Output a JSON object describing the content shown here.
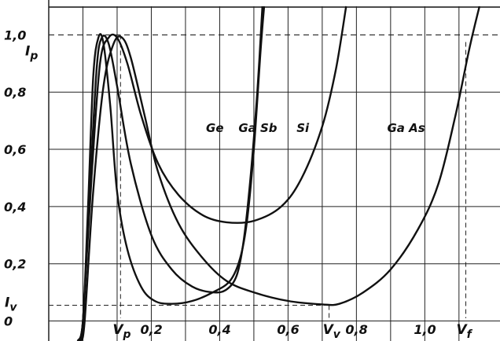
{
  "chart_data": {
    "type": "line",
    "title": "",
    "xlabel": "",
    "ylabel": "",
    "xlim": [
      -0.1,
      1.22
    ],
    "ylim": [
      -0.07,
      1.1
    ],
    "grid": true,
    "x_tick_labels": [
      {
        "value": 0.2,
        "text": "0,2"
      },
      {
        "value": 0.4,
        "text": "0,4"
      },
      {
        "value": 0.6,
        "text": "0,6"
      },
      {
        "value": 0.8,
        "text": "0,8"
      },
      {
        "value": 1.0,
        "text": "1,0"
      }
    ],
    "y_tick_labels": [
      {
        "value": 0,
        "text": "0"
      },
      {
        "value": 0.2,
        "text": "0,2"
      },
      {
        "value": 0.4,
        "text": "0,4"
      },
      {
        "value": 0.6,
        "text": "0,6"
      },
      {
        "value": 0.8,
        "text": "0,8"
      },
      {
        "value": 1.0,
        "text": "1,0"
      }
    ],
    "annotations": {
      "ip": {
        "text": "I",
        "sub": "p",
        "y": 1.0
      },
      "iv": {
        "text": "I",
        "sub": "v",
        "y": 0.055
      },
      "vp": {
        "text": "V",
        "sub": "p",
        "x": 0.11
      },
      "vv": {
        "text": "V",
        "sub": "v",
        "x": 0.72
      },
      "vf": {
        "text": "V",
        "sub": "f",
        "x": 1.12
      }
    },
    "series": [
      {
        "name": "Ge",
        "label_pos": [
          0.36,
          0.66
        ],
        "points": [
          [
            -0.015,
            -0.07
          ],
          [
            0.0,
            0.0
          ],
          [
            0.02,
            0.45
          ],
          [
            0.04,
            0.88
          ],
          [
            0.055,
            0.99
          ],
          [
            0.075,
            0.97
          ],
          [
            0.1,
            0.82
          ],
          [
            0.14,
            0.55
          ],
          [
            0.2,
            0.3
          ],
          [
            0.26,
            0.18
          ],
          [
            0.32,
            0.12
          ],
          [
            0.38,
            0.1
          ],
          [
            0.42,
            0.11
          ],
          [
            0.45,
            0.16
          ],
          [
            0.47,
            0.28
          ],
          [
            0.49,
            0.5
          ],
          [
            0.51,
            0.8
          ],
          [
            0.525,
            1.1
          ]
        ]
      },
      {
        "name": "Ga Sb",
        "label_pos": [
          0.455,
          0.66
        ],
        "points": [
          [
            -0.015,
            -0.07
          ],
          [
            0.0,
            0.0
          ],
          [
            0.015,
            0.4
          ],
          [
            0.03,
            0.85
          ],
          [
            0.045,
            0.99
          ],
          [
            0.06,
            0.97
          ],
          [
            0.08,
            0.75
          ],
          [
            0.1,
            0.45
          ],
          [
            0.13,
            0.25
          ],
          [
            0.17,
            0.12
          ],
          [
            0.21,
            0.07
          ],
          [
            0.26,
            0.06
          ],
          [
            0.32,
            0.07
          ],
          [
            0.38,
            0.1
          ],
          [
            0.43,
            0.14
          ],
          [
            0.46,
            0.22
          ],
          [
            0.48,
            0.35
          ],
          [
            0.5,
            0.6
          ],
          [
            0.52,
            0.95
          ],
          [
            0.53,
            1.1
          ]
        ]
      },
      {
        "name": "Si",
        "label_pos": [
          0.625,
          0.66
        ],
        "points": [
          [
            -0.01,
            -0.07
          ],
          [
            0.0,
            0.0
          ],
          [
            0.025,
            0.5
          ],
          [
            0.05,
            0.9
          ],
          [
            0.075,
            0.99
          ],
          [
            0.1,
            0.99
          ],
          [
            0.13,
            0.9
          ],
          [
            0.17,
            0.72
          ],
          [
            0.22,
            0.55
          ],
          [
            0.28,
            0.44
          ],
          [
            0.35,
            0.37
          ],
          [
            0.42,
            0.345
          ],
          [
            0.5,
            0.35
          ],
          [
            0.58,
            0.4
          ],
          [
            0.64,
            0.5
          ],
          [
            0.7,
            0.68
          ],
          [
            0.74,
            0.88
          ],
          [
            0.77,
            1.1
          ]
        ]
      },
      {
        "name": "Ga As",
        "label_pos": [
          0.89,
          0.66
        ],
        "points": [
          [
            -0.005,
            -0.07
          ],
          [
            0.005,
            0.0
          ],
          [
            0.03,
            0.45
          ],
          [
            0.06,
            0.82
          ],
          [
            0.09,
            0.97
          ],
          [
            0.115,
            0.99
          ],
          [
            0.14,
            0.92
          ],
          [
            0.18,
            0.72
          ],
          [
            0.22,
            0.52
          ],
          [
            0.28,
            0.34
          ],
          [
            0.35,
            0.22
          ],
          [
            0.42,
            0.14
          ],
          [
            0.5,
            0.1
          ],
          [
            0.6,
            0.07
          ],
          [
            0.7,
            0.058
          ],
          [
            0.75,
            0.06
          ],
          [
            0.82,
            0.1
          ],
          [
            0.9,
            0.18
          ],
          [
            0.98,
            0.32
          ],
          [
            1.04,
            0.48
          ],
          [
            1.09,
            0.72
          ],
          [
            1.13,
            0.95
          ],
          [
            1.16,
            1.1
          ]
        ]
      }
    ]
  }
}
